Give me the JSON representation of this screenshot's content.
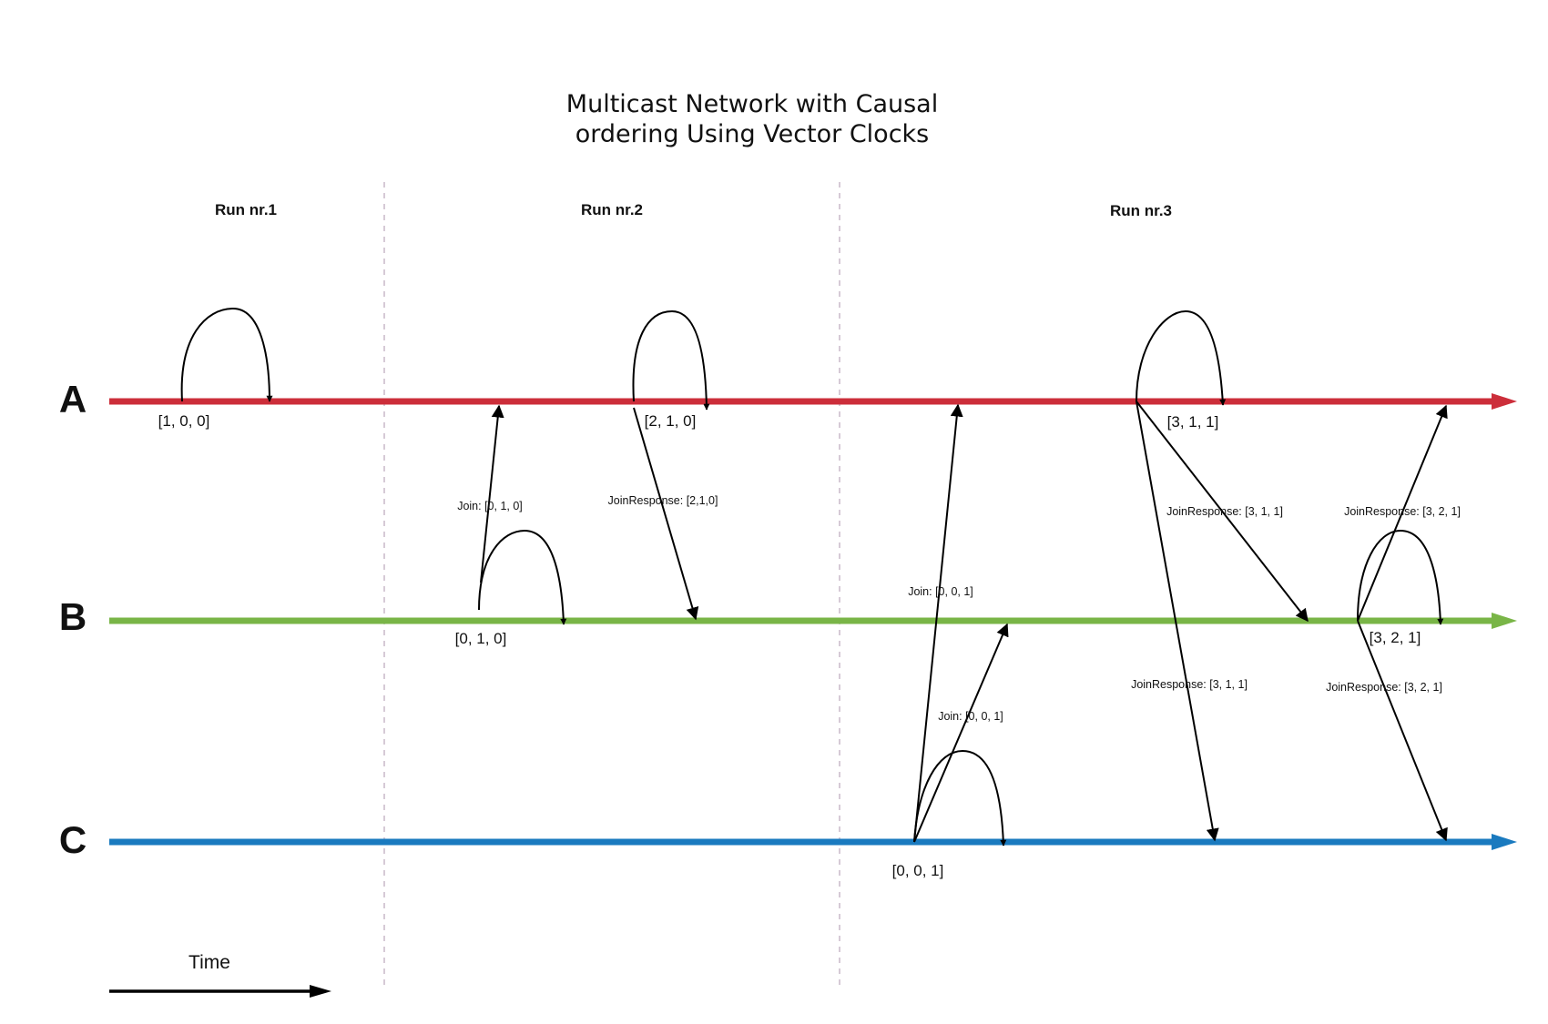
{
  "title_line1": "Multicast Network with Causal",
  "title_line2": "ordering Using Vector Clocks",
  "runs": [
    "Run nr.1",
    "Run nr.2",
    "Run nr.3"
  ],
  "processes": [
    {
      "name": "A",
      "color": "#cc2e3a"
    },
    {
      "name": "B",
      "color": "#79b547"
    },
    {
      "name": "C",
      "color": "#1a7abf"
    }
  ],
  "clocks": {
    "a_run1": "[1, 0, 0]",
    "b_run2": "[0, 1, 0]",
    "a_run2": "[2, 1, 0]",
    "c_run3": "[0, 0, 1]",
    "a_run3": "[3, 1, 1]",
    "b_run3": "[3, 2, 1]"
  },
  "messages": {
    "join_b_to_a": "Join: [0, 1, 0]",
    "joinresp_a_to_b_run2": "JoinResponse: [2,1,0]",
    "join_c_to_a": "Join: [0, 0, 1]",
    "join_c_to_b": "Join: [0, 0, 1]",
    "joinresp_a_to_b_run3": "JoinResponse: [3, 1, 1]",
    "joinresp_a_to_c_run3": "JoinResponse: [3, 1, 1]",
    "joinresp_b_to_a_run3": "JoinResponse: [3, 2, 1]",
    "joinresp_b_to_c_run3": "JoinResponse: [3, 2, 1]"
  },
  "time_label": "Time"
}
